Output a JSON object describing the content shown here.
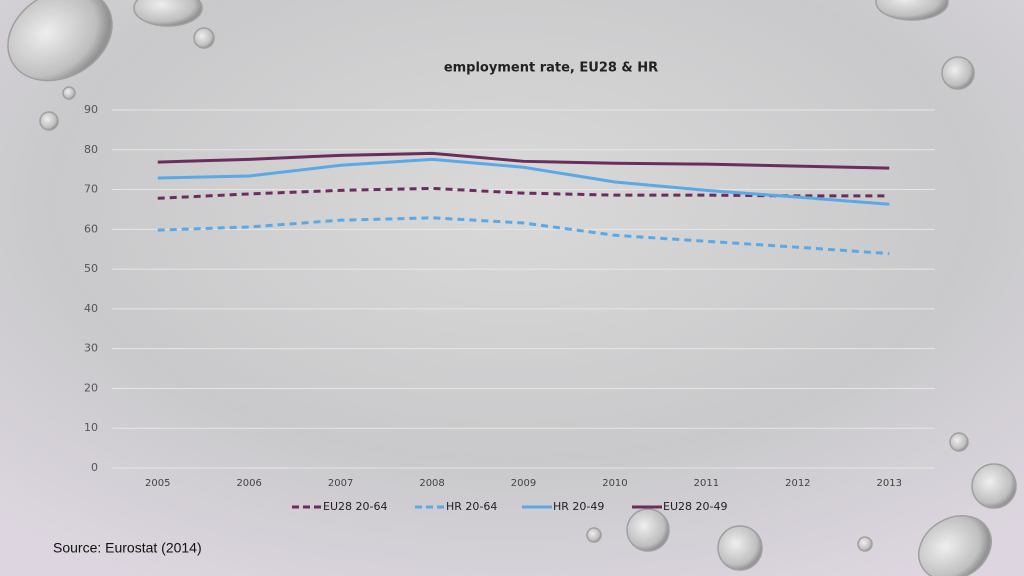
{
  "chart_data": {
    "type": "line",
    "title": "employment rate, EU28 & HR",
    "categories": [
      "2005",
      "2006",
      "2007",
      "2008",
      "2009",
      "2010",
      "2011",
      "2012",
      "2013"
    ],
    "series": [
      {
        "name": "EU28 20-64",
        "color": "#6b2d5c",
        "dashed": true,
        "values": [
          67.8,
          68.9,
          69.8,
          70.3,
          69.1,
          68.6,
          68.6,
          68.4,
          68.4
        ]
      },
      {
        "name": "HR 20-64",
        "color": "#5aa9e6",
        "dashed": true,
        "values": [
          59.8,
          60.6,
          62.3,
          62.9,
          61.6,
          58.5,
          57.0,
          55.5,
          53.9
        ]
      },
      {
        "name": "HR 20-49",
        "color": "#5aa9e6",
        "dashed": false,
        "values": [
          72.9,
          73.4,
          76.1,
          77.6,
          75.6,
          71.9,
          69.8,
          68.1,
          66.3
        ]
      },
      {
        "name": "EU28 20-49",
        "color": "#6b2d5c",
        "dashed": false,
        "values": [
          76.9,
          77.6,
          78.6,
          79.1,
          77.1,
          76.6,
          76.4,
          75.9,
          75.4
        ]
      }
    ],
    "ylim": [
      0,
      90
    ],
    "yticks": [
      0,
      10,
      20,
      30,
      40,
      50,
      60,
      70,
      80,
      90
    ],
    "grid": true,
    "legend": "bottom",
    "source": "Source: Eurostat (2014)"
  }
}
